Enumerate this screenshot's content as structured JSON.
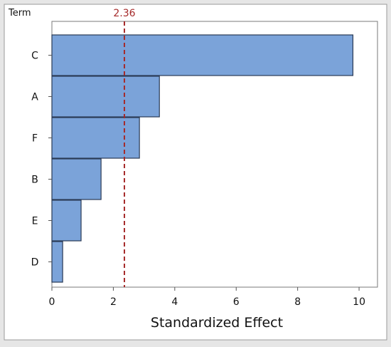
{
  "chart_data": {
    "type": "bar",
    "orientation": "horizontal",
    "title": "",
    "xlabel": "Standardized Effect",
    "ylabel": "Term",
    "categories": [
      "C",
      "A",
      "F",
      "B",
      "E",
      "D"
    ],
    "values": [
      9.8,
      3.5,
      2.85,
      1.6,
      0.95,
      0.35
    ],
    "xlim": [
      0,
      10.6
    ],
    "xticks": [
      0,
      2,
      4,
      6,
      8,
      10
    ],
    "reference_line": {
      "value": 2.36,
      "label": "2.36",
      "color": "#a52a2a"
    },
    "bar_color": "#7ba3d9",
    "bar_edge_color": "#2a3a55",
    "grid": false
  }
}
